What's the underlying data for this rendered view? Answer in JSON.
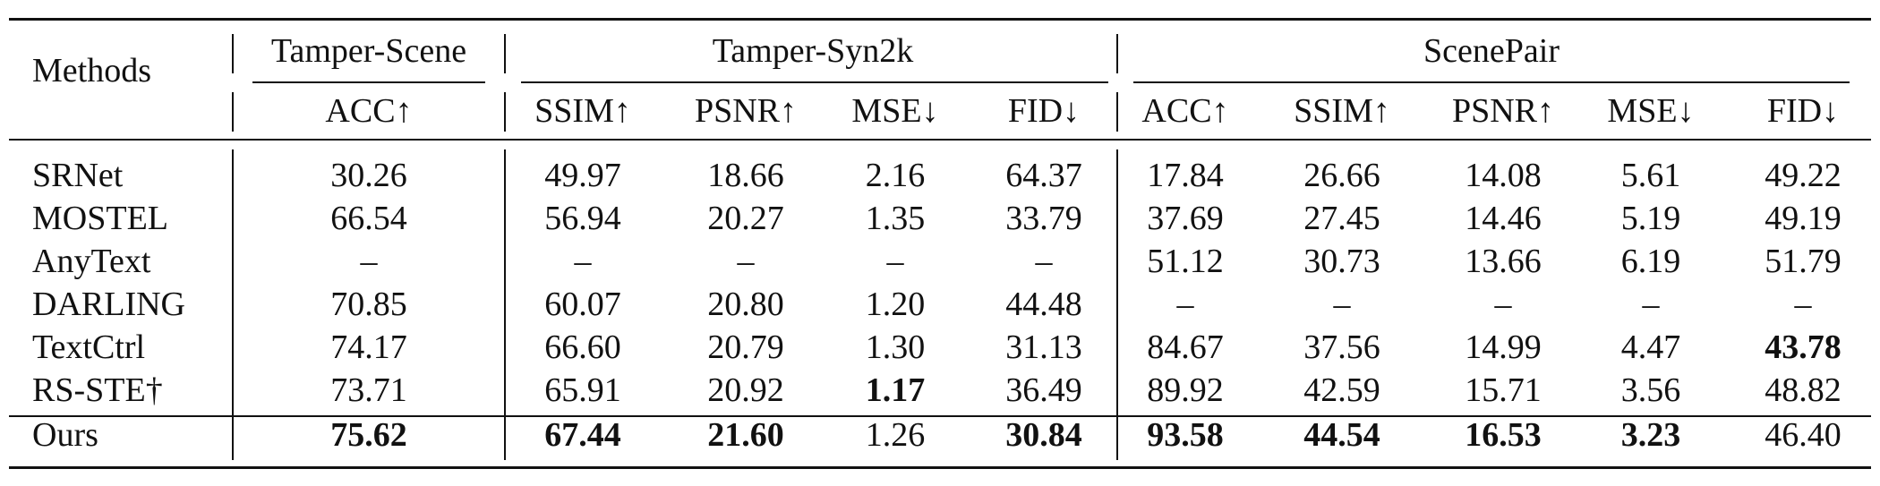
{
  "table": {
    "methods_header": "Methods",
    "group_headers": [
      "Tamper-Scene",
      "Tamper-Syn2k",
      "ScenePair"
    ],
    "metric_headers": [
      "ACC↑",
      "SSIM↑",
      "PSNR↑",
      "MSE↓",
      "FID↓",
      "ACC↑",
      "SSIM↑",
      "PSNR↑",
      "MSE↓",
      "FID↓"
    ],
    "rows": [
      {
        "method": "SRNet",
        "values": [
          "30.26",
          "49.97",
          "18.66",
          "2.16",
          "64.37",
          "17.84",
          "26.66",
          "14.08",
          "5.61",
          "49.22"
        ],
        "bold": []
      },
      {
        "method": "MOSTEL",
        "values": [
          "66.54",
          "56.94",
          "20.27",
          "1.35",
          "33.79",
          "37.69",
          "27.45",
          "14.46",
          "5.19",
          "49.19"
        ],
        "bold": []
      },
      {
        "method": "AnyText",
        "values": [
          "–",
          "–",
          "–",
          "–",
          "–",
          "51.12",
          "30.73",
          "13.66",
          "6.19",
          "51.79"
        ],
        "bold": []
      },
      {
        "method": "DARLING",
        "values": [
          "70.85",
          "60.07",
          "20.80",
          "1.20",
          "44.48",
          "–",
          "–",
          "–",
          "–",
          "–"
        ],
        "bold": []
      },
      {
        "method": "TextCtrl",
        "values": [
          "74.17",
          "66.60",
          "20.79",
          "1.30",
          "31.13",
          "84.67",
          "37.56",
          "14.99",
          "4.47",
          "43.78"
        ],
        "bold": [
          9
        ]
      },
      {
        "method": "RS-STE†",
        "values": [
          "73.71",
          "65.91",
          "20.92",
          "1.17",
          "36.49",
          "89.92",
          "42.59",
          "15.71",
          "3.56",
          "48.82"
        ],
        "bold": [
          3
        ]
      },
      {
        "method": "Ours",
        "values": [
          "75.62",
          "67.44",
          "21.60",
          "1.26",
          "30.84",
          "93.58",
          "44.54",
          "16.53",
          "3.23",
          "46.40"
        ],
        "bold": [
          0,
          1,
          2,
          4,
          5,
          6,
          7,
          8
        ]
      }
    ]
  }
}
